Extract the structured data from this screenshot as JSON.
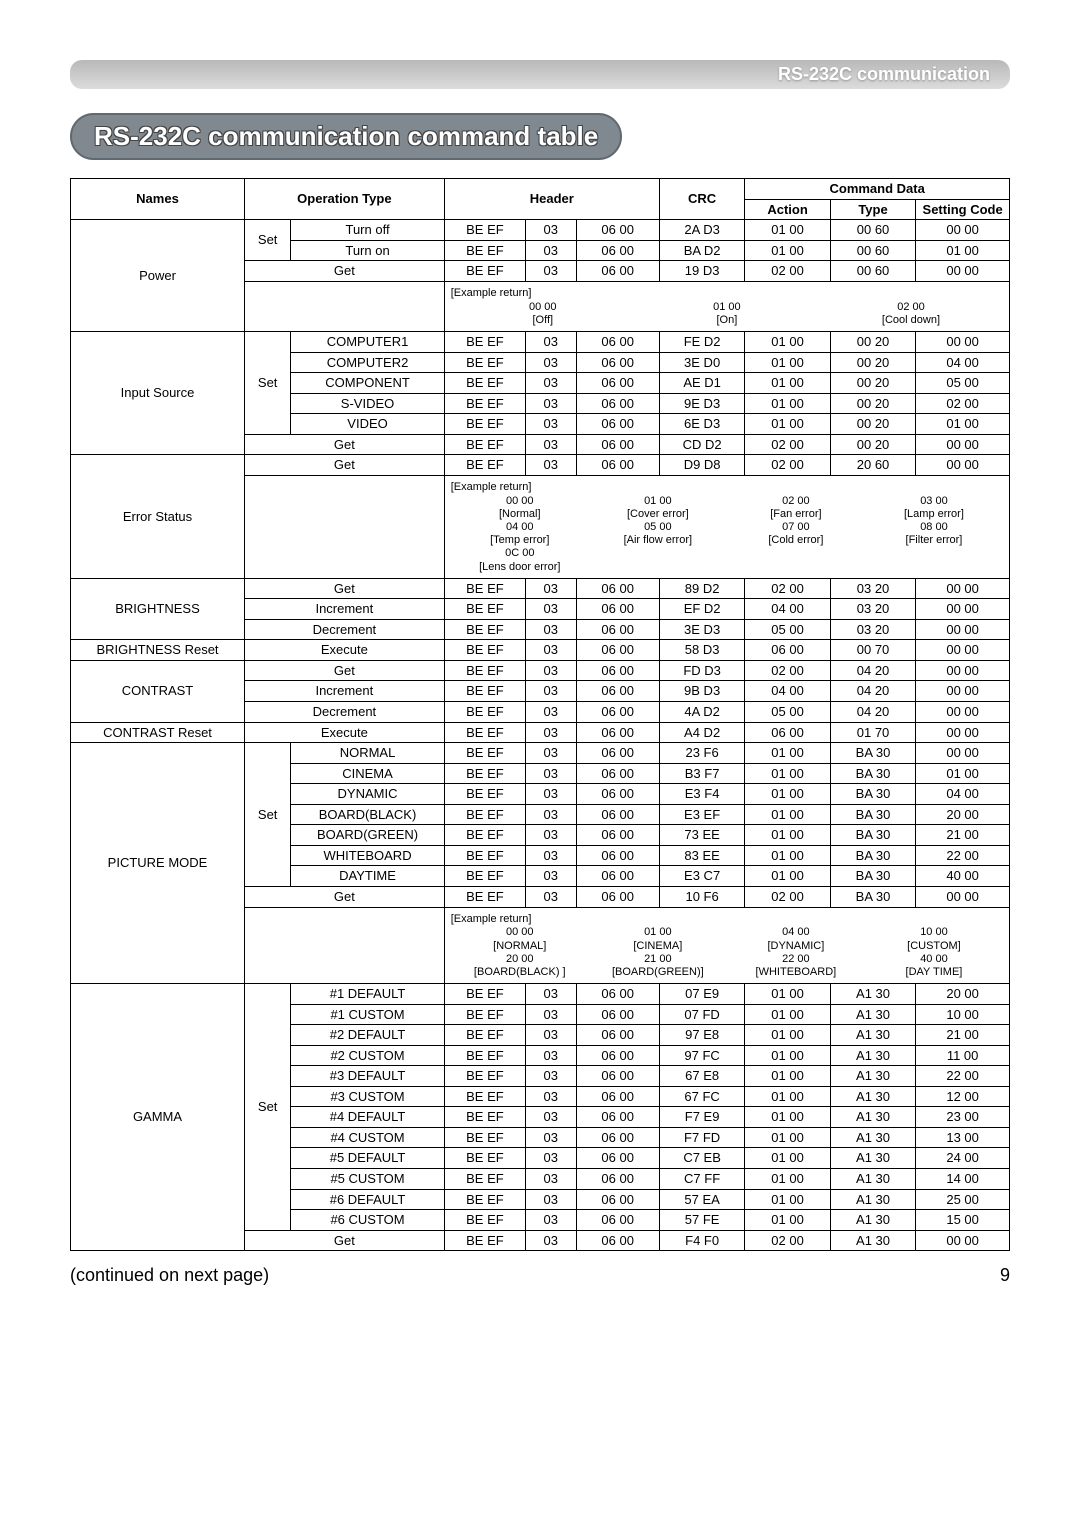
{
  "banner": "RS-232C communication",
  "title": "RS-232C communication command table",
  "headers": {
    "names": "Names",
    "operation": "Operation Type",
    "header": "Header",
    "commandData": "Command Data",
    "crc": "CRC",
    "action": "Action",
    "type": "Type",
    "setting": "Setting Code"
  },
  "sections": [
    {
      "name": "Power",
      "nameRowspan": 4,
      "rows": [
        {
          "op": "Set",
          "opRowspan": 2,
          "sub": "Turn off",
          "h1": "BE  EF",
          "h2": "03",
          "h3": "06  00",
          "crc": "2A  D3",
          "act": "01  00",
          "type": "00  60",
          "set": "00  00"
        },
        {
          "sub": "Turn on",
          "h1": "BE  EF",
          "h2": "03",
          "h3": "06  00",
          "crc": "BA  D2",
          "act": "01  00",
          "type": "00  60",
          "set": "01  00"
        },
        {
          "op": "Get",
          "opSpan": 2,
          "h1": "BE  EF",
          "h2": "03",
          "h3": "06  00",
          "crc": "19  D3",
          "act": "02  00",
          "type": "00  60",
          "set": "00  00"
        }
      ],
      "example": {
        "label": "[Example return]",
        "cols": [
          {
            "v": "00  00",
            "l": "[Off]"
          },
          {
            "v": "01  00",
            "l": "[On]"
          },
          {
            "v": "02  00",
            "l": "[Cool down]"
          }
        ]
      }
    },
    {
      "name": "Input Source",
      "nameRowspan": 6,
      "rows": [
        {
          "op": "Set",
          "opRowspan": 5,
          "sub": "COMPUTER1",
          "h1": "BE  EF",
          "h2": "03",
          "h3": "06  00",
          "crc": "FE  D2",
          "act": "01  00",
          "type": "00  20",
          "set": "00  00"
        },
        {
          "sub": "COMPUTER2",
          "h1": "BE  EF",
          "h2": "03",
          "h3": "06  00",
          "crc": "3E  D0",
          "act": "01  00",
          "type": "00  20",
          "set": "04  00"
        },
        {
          "sub": "COMPONENT",
          "h1": "BE  EF",
          "h2": "03",
          "h3": "06  00",
          "crc": "AE  D1",
          "act": "01  00",
          "type": "00  20",
          "set": "05  00"
        },
        {
          "sub": "S-VIDEO",
          "h1": "BE  EF",
          "h2": "03",
          "h3": "06  00",
          "crc": "9E  D3",
          "act": "01  00",
          "type": "00  20",
          "set": "02  00"
        },
        {
          "sub": "VIDEO",
          "h1": "BE  EF",
          "h2": "03",
          "h3": "06  00",
          "crc": "6E  D3",
          "act": "01  00",
          "type": "00  20",
          "set": "01  00"
        },
        {
          "op": "Get",
          "opSpan": 2,
          "h1": "BE  EF",
          "h2": "03",
          "h3": "06  00",
          "crc": "CD  D2",
          "act": "02  00",
          "type": "00  20",
          "set": "00  00"
        }
      ]
    },
    {
      "name": "Error Status",
      "nameRowspan": 2,
      "rows": [
        {
          "op": "Get",
          "opSpan": 2,
          "h1": "BE  EF",
          "h2": "03",
          "h3": "06  00",
          "crc": "D9  D8",
          "act": "02  00",
          "type": "20  60",
          "set": "00  00"
        }
      ],
      "example": {
        "label": "[Example return]",
        "twoLine": true,
        "cols": [
          {
            "v": "00  00",
            "l": "[Normal]",
            "v2": "04  00",
            "l2": "[Temp error]",
            "v3": "0C  00",
            "l3": "[Lens door error]"
          },
          {
            "v": "01  00",
            "l": "[Cover error]",
            "v2": "05  00",
            "l2": "[Air flow error]"
          },
          {
            "v": "02  00",
            "l": "[Fan error]",
            "v2": "07  00",
            "l2": "[Cold error]"
          },
          {
            "v": "03  00",
            "l": "[Lamp error]",
            "v2": "08  00",
            "l2": "[Filter error]"
          }
        ]
      }
    },
    {
      "name": "BRIGHTNESS",
      "nameRowspan": 3,
      "rows": [
        {
          "op": "Get",
          "opSpan": 2,
          "h1": "BE  EF",
          "h2": "03",
          "h3": "06  00",
          "crc": "89  D2",
          "act": "02  00",
          "type": "03  20",
          "set": "00  00"
        },
        {
          "op": "Increment",
          "opSpan": 2,
          "h1": "BE  EF",
          "h2": "03",
          "h3": "06  00",
          "crc": "EF  D2",
          "act": "04  00",
          "type": "03  20",
          "set": "00  00"
        },
        {
          "op": "Decrement",
          "opSpan": 2,
          "h1": "BE  EF",
          "h2": "03",
          "h3": "06  00",
          "crc": "3E  D3",
          "act": "05  00",
          "type": "03  20",
          "set": "00  00"
        }
      ]
    },
    {
      "name": "BRIGHTNESS Reset",
      "nameRowspan": 1,
      "rows": [
        {
          "op": "Execute",
          "opSpan": 2,
          "h1": "BE  EF",
          "h2": "03",
          "h3": "06  00",
          "crc": "58  D3",
          "act": "06  00",
          "type": "00  70",
          "set": "00  00"
        }
      ]
    },
    {
      "name": "CONTRAST",
      "nameRowspan": 3,
      "rows": [
        {
          "op": "Get",
          "opSpan": 2,
          "h1": "BE  EF",
          "h2": "03",
          "h3": "06  00",
          "crc": "FD  D3",
          "act": "02  00",
          "type": "04  20",
          "set": "00  00"
        },
        {
          "op": "Increment",
          "opSpan": 2,
          "h1": "BE  EF",
          "h2": "03",
          "h3": "06  00",
          "crc": "9B  D3",
          "act": "04  00",
          "type": "04  20",
          "set": "00  00"
        },
        {
          "op": "Decrement",
          "opSpan": 2,
          "h1": "BE  EF",
          "h2": "03",
          "h3": "06  00",
          "crc": "4A  D2",
          "act": "05  00",
          "type": "04  20",
          "set": "00  00"
        }
      ]
    },
    {
      "name": "CONTRAST Reset",
      "nameRowspan": 1,
      "rows": [
        {
          "op": "Execute",
          "opSpan": 2,
          "h1": "BE  EF",
          "h2": "03",
          "h3": "06  00",
          "crc": "A4  D2",
          "act": "06  00",
          "type": "01  70",
          "set": "00  00"
        }
      ]
    },
    {
      "name": "PICTURE MODE",
      "nameRowspan": 9,
      "rows": [
        {
          "op": "Set",
          "opRowspan": 7,
          "sub": "NORMAL",
          "h1": "BE  EF",
          "h2": "03",
          "h3": "06  00",
          "crc": "23  F6",
          "act": "01  00",
          "type": "BA  30",
          "set": "00  00"
        },
        {
          "sub": "CINEMA",
          "h1": "BE  EF",
          "h2": "03",
          "h3": "06  00",
          "crc": "B3  F7",
          "act": "01  00",
          "type": "BA  30",
          "set": "01  00"
        },
        {
          "sub": "DYNAMIC",
          "h1": "BE  EF",
          "h2": "03",
          "h3": "06  00",
          "crc": "E3  F4",
          "act": "01  00",
          "type": "BA  30",
          "set": "04  00"
        },
        {
          "sub": "BOARD(BLACK)",
          "h1": "BE  EF",
          "h2": "03",
          "h3": "06  00",
          "crc": "E3  EF",
          "act": "01  00",
          "type": "BA  30",
          "set": "20  00"
        },
        {
          "sub": "BOARD(GREEN)",
          "h1": "BE  EF",
          "h2": "03",
          "h3": "06  00",
          "crc": "73  EE",
          "act": "01  00",
          "type": "BA  30",
          "set": "21  00"
        },
        {
          "sub": "WHITEBOARD",
          "h1": "BE  EF",
          "h2": "03",
          "h3": "06  00",
          "crc": "83  EE",
          "act": "01  00",
          "type": "BA  30",
          "set": "22  00"
        },
        {
          "sub": "DAYTIME",
          "h1": "BE  EF",
          "h2": "03",
          "h3": "06  00",
          "crc": "E3  C7",
          "act": "01  00",
          "type": "BA  30",
          "set": "40  00"
        },
        {
          "op": "Get",
          "opSpan": 2,
          "h1": "BE  EF",
          "h2": "03",
          "h3": "06  00",
          "crc": "10  F6",
          "act": "02  00",
          "type": "BA  30",
          "set": "00  00"
        }
      ],
      "example": {
        "label": "[Example return]",
        "twoLine": true,
        "cols": [
          {
            "v": "00  00",
            "l": "[NORMAL]",
            "v2": "20  00",
            "l2": "[BOARD(BLACK) ]"
          },
          {
            "v": "01  00",
            "l": "[CINEMA]",
            "v2": "21  00",
            "l2": "[BOARD(GREEN)]"
          },
          {
            "v": "04  00",
            "l": "[DYNAMIC]",
            "v2": "22  00",
            "l2": "[WHITEBOARD]"
          },
          {
            "v": "10  00",
            "l": "[CUSTOM]",
            "v2": "40  00",
            "l2": "[DAY TIME]"
          }
        ]
      }
    },
    {
      "name": "GAMMA",
      "nameRowspan": 13,
      "rows": [
        {
          "op": "Set",
          "opRowspan": 12,
          "sub": "#1 DEFAULT",
          "h1": "BE  EF",
          "h2": "03",
          "h3": "06  00",
          "crc": "07  E9",
          "act": "01  00",
          "type": "A1  30",
          "set": "20  00"
        },
        {
          "sub": "#1 CUSTOM",
          "h1": "BE  EF",
          "h2": "03",
          "h3": "06  00",
          "crc": "07  FD",
          "act": "01  00",
          "type": "A1  30",
          "set": "10  00"
        },
        {
          "sub": "#2 DEFAULT",
          "h1": "BE  EF",
          "h2": "03",
          "h3": "06  00",
          "crc": "97  E8",
          "act": "01  00",
          "type": "A1  30",
          "set": "21  00"
        },
        {
          "sub": "#2 CUSTOM",
          "h1": "BE  EF",
          "h2": "03",
          "h3": "06  00",
          "crc": "97  FC",
          "act": "01  00",
          "type": "A1  30",
          "set": "11  00"
        },
        {
          "sub": "#3 DEFAULT",
          "h1": "BE  EF",
          "h2": "03",
          "h3": "06  00",
          "crc": "67  E8",
          "act": "01  00",
          "type": "A1  30",
          "set": "22  00"
        },
        {
          "sub": "#3 CUSTOM",
          "h1": "BE  EF",
          "h2": "03",
          "h3": "06  00",
          "crc": "67  FC",
          "act": "01  00",
          "type": "A1  30",
          "set": "12  00"
        },
        {
          "sub": "#4 DEFAULT",
          "h1": "BE  EF",
          "h2": "03",
          "h3": "06  00",
          "crc": "F7  E9",
          "act": "01  00",
          "type": "A1  30",
          "set": "23  00"
        },
        {
          "sub": "#4 CUSTOM",
          "h1": "BE  EF",
          "h2": "03",
          "h3": "06  00",
          "crc": "F7  FD",
          "act": "01  00",
          "type": "A1  30",
          "set": "13  00"
        },
        {
          "sub": "#5 DEFAULT",
          "h1": "BE  EF",
          "h2": "03",
          "h3": "06  00",
          "crc": "C7  EB",
          "act": "01  00",
          "type": "A1  30",
          "set": "24  00"
        },
        {
          "sub": "#5 CUSTOM",
          "h1": "BE  EF",
          "h2": "03",
          "h3": "06  00",
          "crc": "C7  FF",
          "act": "01  00",
          "type": "A1  30",
          "set": "14  00"
        },
        {
          "sub": "#6 DEFAULT",
          "h1": "BE  EF",
          "h2": "03",
          "h3": "06  00",
          "crc": "57  EA",
          "act": "01  00",
          "type": "A1  30",
          "set": "25  00"
        },
        {
          "sub": "#6 CUSTOM",
          "h1": "BE  EF",
          "h2": "03",
          "h3": "06  00",
          "crc": "57  FE",
          "act": "01  00",
          "type": "A1  30",
          "set": "15  00"
        },
        {
          "op": "Get",
          "opSpan": 2,
          "h1": "BE  EF",
          "h2": "03",
          "h3": "06  00",
          "crc": "F4  F0",
          "act": "02  00",
          "type": "A1  30",
          "set": "00  00"
        }
      ]
    }
  ],
  "footer": {
    "continued": "(continued on next page)",
    "page": "9"
  },
  "colors": {
    "bannerGradTop": "#b8b8b8",
    "bannerGradBot": "#dcdcdc",
    "chipBg": "#808890",
    "border": "#000000",
    "text": "#000000"
  }
}
